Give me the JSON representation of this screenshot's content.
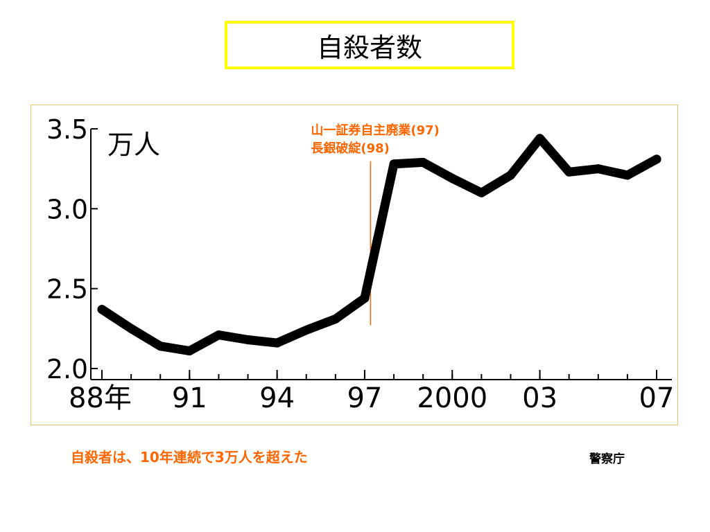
{
  "title": "自殺者数",
  "caption": "自殺者は、10年連続で3万人を超えた",
  "source": "警察庁",
  "colors": {
    "title_border": "#ffff00",
    "frame_border": "#e8c46a",
    "line": "#000000",
    "annotation": "#ff6600",
    "caption": "#ff6600"
  },
  "chart_data": {
    "type": "line",
    "unit_label": "万人",
    "x": [
      1988,
      1989,
      1990,
      1991,
      1992,
      1993,
      1994,
      1995,
      1996,
      1997,
      1998,
      1999,
      2000,
      2001,
      2002,
      2003,
      2004,
      2005,
      2006,
      2007
    ],
    "values": [
      2.37,
      2.25,
      2.14,
      2.11,
      2.21,
      2.18,
      2.16,
      2.24,
      2.31,
      2.44,
      3.28,
      3.29,
      3.19,
      3.1,
      3.21,
      3.44,
      3.23,
      3.25,
      3.21,
      3.31
    ],
    "ylim": [
      2.0,
      3.5
    ],
    "yticks": [
      {
        "value": 2.0,
        "label": "2.0"
      },
      {
        "value": 2.5,
        "label": "2.5"
      },
      {
        "value": 3.0,
        "label": "3.0"
      },
      {
        "value": 3.5,
        "label": "3.5"
      }
    ],
    "xlim": [
      1988,
      2007
    ],
    "xticks": [
      {
        "value": 1988,
        "label": "88年"
      },
      {
        "value": 1991,
        "label": "91"
      },
      {
        "value": 1994,
        "label": "94"
      },
      {
        "value": 1997,
        "label": "97"
      },
      {
        "value": 2000,
        "label": "2000"
      },
      {
        "value": 2003,
        "label": "03"
      },
      {
        "value": 2007,
        "label": "07"
      }
    ],
    "annotation": {
      "lines": [
        "山一証券自主廃業(97)",
        "長銀破綻(98)"
      ],
      "x": 1997.2,
      "y_from": 2.27,
      "y_to": 3.28
    },
    "grid": false,
    "legend": "none"
  }
}
